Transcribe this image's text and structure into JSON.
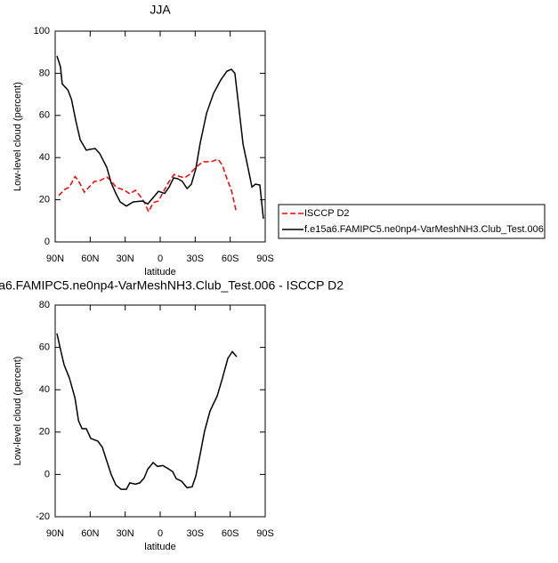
{
  "chart_data": [
    {
      "type": "line",
      "title": "JJA",
      "x_label": "latitude",
      "y_label": "Low-level cloud (percent)",
      "xlim": [
        90,
        -90
      ],
      "xticks": [
        {
          "value": 90,
          "label": "90N"
        },
        {
          "value": 60,
          "label": "60N"
        },
        {
          "value": 30,
          "label": "30N"
        },
        0,
        {
          "value": -30,
          "label": "30S"
        },
        {
          "value": -60,
          "label": "60S"
        },
        {
          "value": -90,
          "label": "90S"
        }
      ],
      "ylim": [
        0,
        100
      ],
      "yticks": [
        0,
        20,
        40,
        60,
        80,
        100
      ],
      "legend": "outside-right",
      "series": [
        {
          "name": "ISCCP D2",
          "color": "#ff0000",
          "style": "dashed",
          "x": [
            87,
            81.6,
            77.8,
            73,
            70,
            65,
            61,
            56.4,
            52,
            45.8,
            42,
            38,
            30.5,
            26,
            21.3,
            17.5,
            13.7,
            9.9,
            6,
            1.5,
            -3,
            -7.6,
            -12,
            -16,
            -21,
            -25,
            -30.5,
            -36.6,
            -43.5,
            -49.6,
            -53.4,
            -57,
            -61,
            -65
          ],
          "values": [
            22,
            25,
            26,
            31,
            29,
            23.6,
            26,
            28.7,
            29,
            30.8,
            29,
            26,
            24.5,
            22.8,
            24.5,
            22,
            19,
            14.3,
            18.6,
            19.4,
            24,
            28.7,
            32,
            31.2,
            30.4,
            32,
            35.4,
            38,
            38,
            39.2,
            36.3,
            30.4,
            24.5,
            14.8
          ]
        },
        {
          "name": "f.e15a6.FAMIPC5.ne0np4-VarMeshNH3.Club_Test.006",
          "color": "#000000",
          "style": "solid",
          "x": [
            88.5,
            85.4,
            84,
            79,
            76,
            72.5,
            68.6,
            63.3,
            59.5,
            55.7,
            51.9,
            45.8,
            42,
            38,
            34.3,
            29,
            23,
            15.3,
            10.7,
            6,
            1.5,
            -3.8,
            -7.6,
            -11.5,
            -15,
            -19,
            -23,
            -26.7,
            -30.5,
            -34.3,
            -39.7,
            -45.8,
            -51.9,
            -57.2,
            -61,
            -64,
            -67,
            -71,
            -76.3,
            -78.6,
            -81.6,
            -85.4,
            -88.5
          ],
          "values": [
            88.2,
            83,
            75,
            72,
            67.5,
            58,
            48.5,
            43.5,
            44,
            44.3,
            42,
            35.4,
            28,
            23,
            19,
            17,
            19,
            19.4,
            18,
            21,
            24,
            23,
            26,
            30.4,
            30,
            28.7,
            25.3,
            27.4,
            34.6,
            47,
            61,
            70.5,
            76.8,
            81,
            81.9,
            80,
            66,
            46.4,
            32.5,
            26,
            27.4,
            27,
            11
          ]
        }
      ]
    },
    {
      "type": "line",
      "title": "a6.FAMIPC5.ne0np4-VarMeshNH3.Club_Test.006 - ISCCP D2",
      "x_label": "latitude",
      "y_label": "Low-level cloud (percent)",
      "xlim": [
        90,
        -90
      ],
      "xticks": [
        {
          "value": 90,
          "label": "90N"
        },
        {
          "value": 60,
          "label": "60N"
        },
        {
          "value": 30,
          "label": "30N"
        },
        0,
        {
          "value": -30,
          "label": "30S"
        },
        {
          "value": -60,
          "label": "60S"
        },
        {
          "value": -90,
          "label": "90S"
        }
      ],
      "ylim": [
        -20,
        80
      ],
      "yticks": [
        -20,
        0,
        20,
        40,
        60,
        80
      ],
      "series": [
        {
          "color": "#000000",
          "style": "solid",
          "x": [
            88.5,
            85.4,
            82.4,
            77.8,
            73,
            70,
            67,
            63.3,
            59.5,
            53.4,
            49.6,
            45.8,
            42,
            38,
            33.5,
            29,
            26,
            21.3,
            17.5,
            13.7,
            10.7,
            6,
            2.3,
            -2.3,
            -6,
            -10.7,
            -13.7,
            -18.3,
            -23,
            -27.4,
            -30.5,
            -34.3,
            -38,
            -42.7,
            -48.8,
            -53.4,
            -58,
            -61.8,
            -65.6
          ],
          "values": [
            66.6,
            59,
            51.8,
            45.5,
            36,
            25.4,
            21.6,
            21.6,
            17,
            15.7,
            12.8,
            6.3,
            0,
            -5,
            -7,
            -7,
            -4,
            -4.6,
            -4,
            -1.7,
            2.5,
            5.6,
            3.8,
            4.2,
            3,
            1.3,
            -2,
            -3.2,
            -6.3,
            -5.9,
            -0.8,
            9.7,
            20.3,
            30,
            37,
            45.5,
            54.8,
            58,
            55.6
          ]
        }
      ]
    }
  ]
}
